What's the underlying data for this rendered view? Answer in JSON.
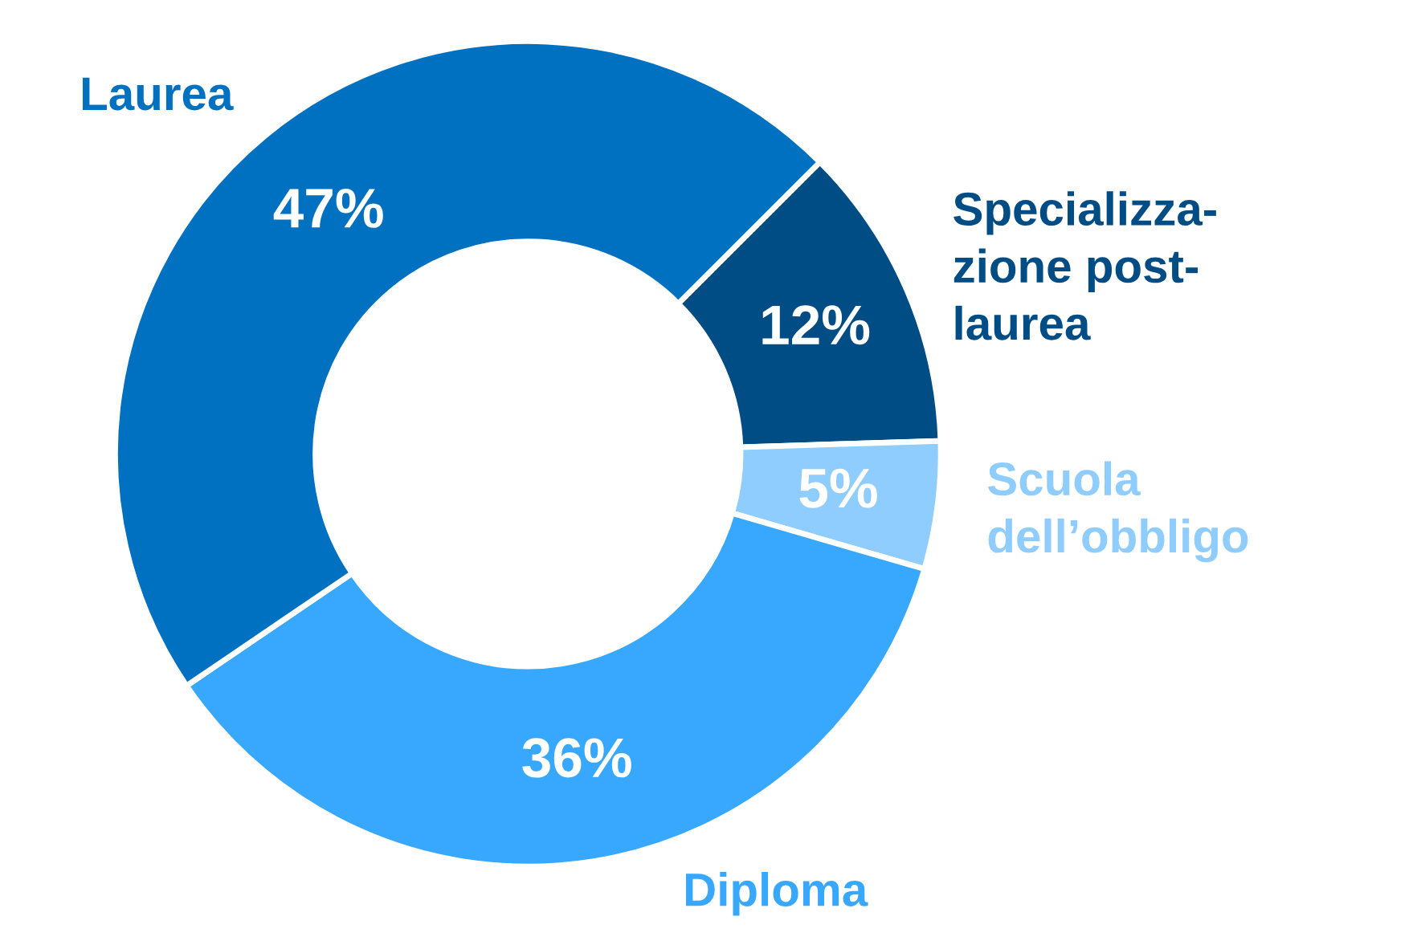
{
  "chart_data": {
    "type": "donut",
    "categories": [
      "Specializza-\nzione post-\nlaurea",
      "Scuola\ndell’obbligo",
      "Diploma",
      "Laurea"
    ],
    "values": [
      12,
      5,
      36,
      47
    ],
    "colors": [
      "#004c85",
      "#8fcdff",
      "#38a8ff",
      "#0070c0"
    ],
    "value_labels": [
      "12%",
      "5%",
      "36%",
      "47%"
    ],
    "legend": false
  }
}
